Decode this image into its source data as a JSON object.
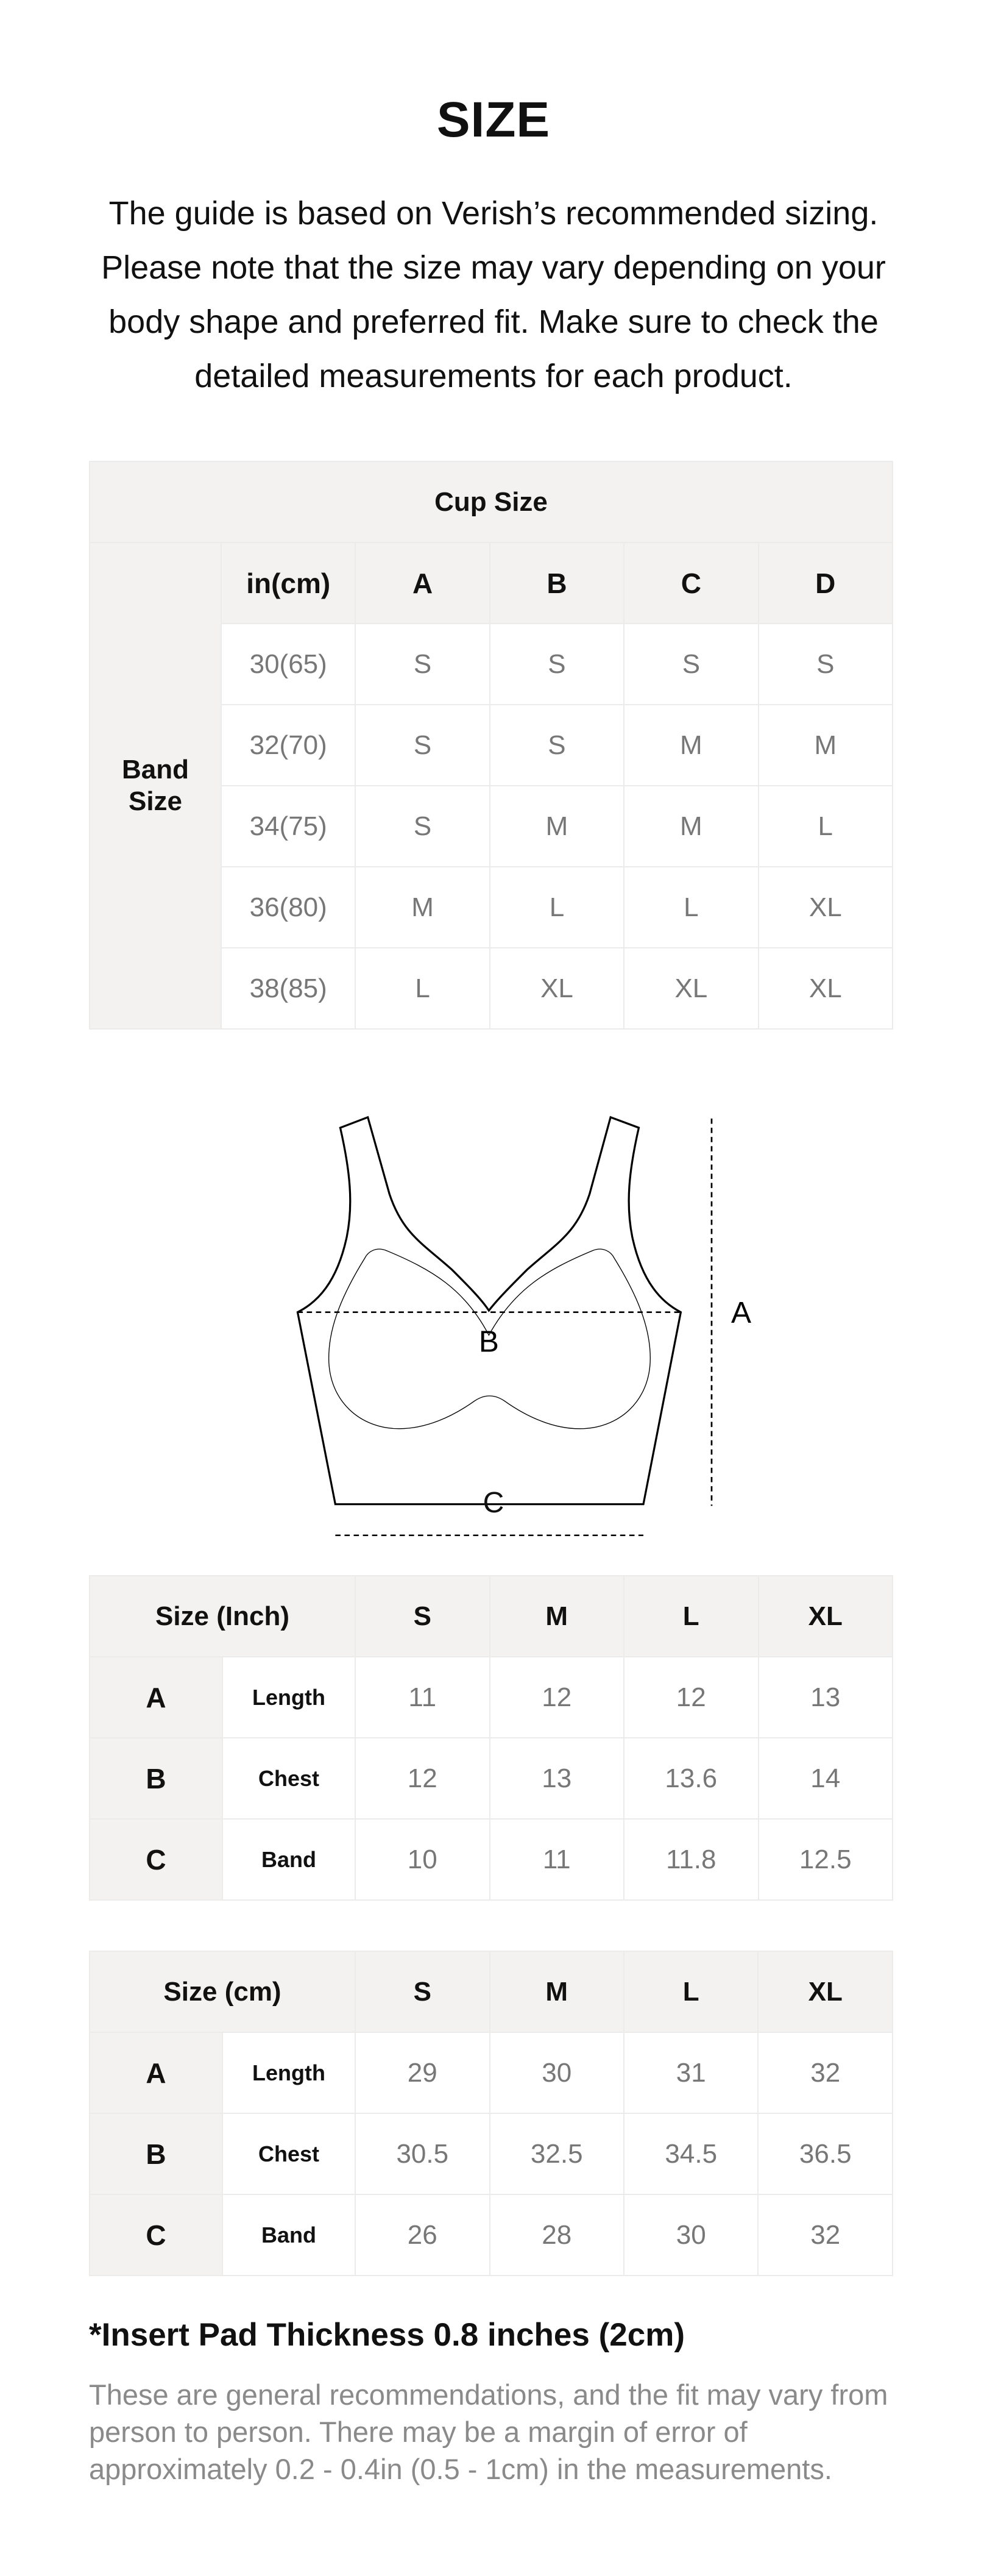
{
  "title": "SIZE",
  "intro": "The guide is based on Verish’s recommended sizing. Please note that the size may vary depending on your body shape and preferred fit. Make sure to check the detailed measurements for each product.",
  "cup_table": {
    "title": "Cup Size",
    "band_label": "Band Size",
    "unit_label": "in(cm)",
    "cups": [
      "A",
      "B",
      "C",
      "D"
    ],
    "rows": [
      {
        "band": "30(65)",
        "sizes": [
          "S",
          "S",
          "S",
          "S"
        ]
      },
      {
        "band": "32(70)",
        "sizes": [
          "S",
          "S",
          "M",
          "M"
        ]
      },
      {
        "band": "34(75)",
        "sizes": [
          "S",
          "M",
          "M",
          "L"
        ]
      },
      {
        "band": "36(80)",
        "sizes": [
          "M",
          "L",
          "L",
          "XL"
        ]
      },
      {
        "band": "38(85)",
        "sizes": [
          "L",
          "XL",
          "XL",
          "XL"
        ]
      }
    ]
  },
  "diagram": {
    "label_a": "A",
    "label_b": "B",
    "label_c": "C"
  },
  "inch_table": {
    "header": "Size (Inch)",
    "sizes": [
      "S",
      "M",
      "L",
      "XL"
    ],
    "rows": [
      {
        "letter": "A",
        "name": "Length",
        "values": [
          "11",
          "12",
          "12",
          "13"
        ]
      },
      {
        "letter": "B",
        "name": "Chest",
        "values": [
          "12",
          "13",
          "13.6",
          "14"
        ]
      },
      {
        "letter": "C",
        "name": "Band",
        "values": [
          "10",
          "11",
          "11.8",
          "12.5"
        ]
      }
    ]
  },
  "cm_table": {
    "header": "Size (cm)",
    "sizes": [
      "S",
      "M",
      "L",
      "XL"
    ],
    "rows": [
      {
        "letter": "A",
        "name": "Length",
        "values": [
          "29",
          "30",
          "31",
          "32"
        ]
      },
      {
        "letter": "B",
        "name": "Chest",
        "values": [
          "30.5",
          "32.5",
          "34.5",
          "36.5"
        ]
      },
      {
        "letter": "C",
        "name": "Band",
        "values": [
          "26",
          "28",
          "30",
          "32"
        ]
      }
    ]
  },
  "note": {
    "title": "*Insert Pad Thickness 0.8 inches (2cm)",
    "text": "These are general recommendations, and the fit may vary from person to person. There may be a margin of error of approximately 0.2 - 0.4in (0.5 - 1cm) in the measurements."
  }
}
